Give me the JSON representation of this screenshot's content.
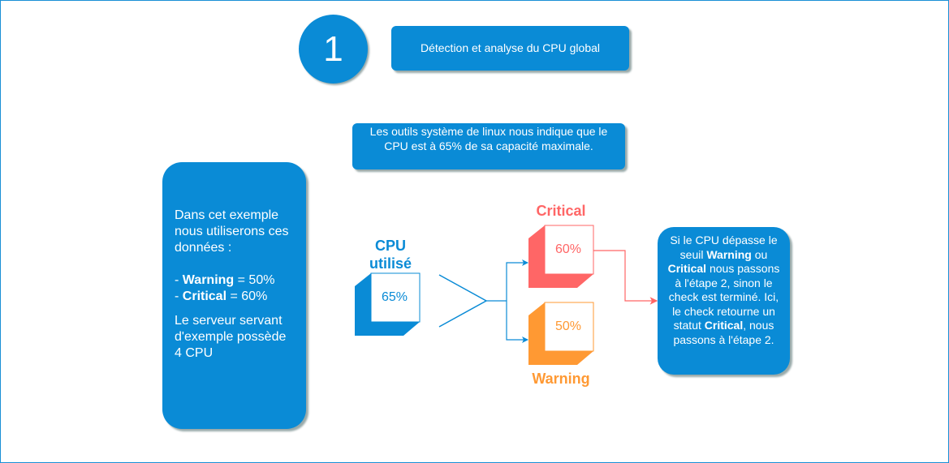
{
  "step_number": "1",
  "title": "Détection et analyse du CPU global",
  "info": "Les outils système de linux nous indique que le CPU est à 65% de sa capacité maximale.",
  "example": {
    "l1": "Dans cet exemple nous utiliserons ces données :",
    "w_key": "Warning",
    "w_val": " = 50%",
    "c_key": "Critical",
    "c_val": " = 60%",
    "server": "Le serveur servant d'exemple possède 4 CPU"
  },
  "cpu": {
    "label": "CPU utilisé",
    "value": "65%"
  },
  "critical": {
    "label": "Critical",
    "value": "60%"
  },
  "warning": {
    "label": "Warning",
    "value": "50%"
  },
  "result": {
    "t1": "Si le CPU dépasse le seuil ",
    "w": "Warning",
    "t2": " ou ",
    "c": "Critical",
    "t3": " nous passons à l'étape 2, sinon le check est terminé. Ici, le check retourne un statut ",
    "c2": "Critical",
    "t4": ", nous passons à l'étape 2."
  },
  "colors": {
    "blue": "#0a8bd6",
    "critical": "#ff6666",
    "warning": "#ff9933"
  }
}
